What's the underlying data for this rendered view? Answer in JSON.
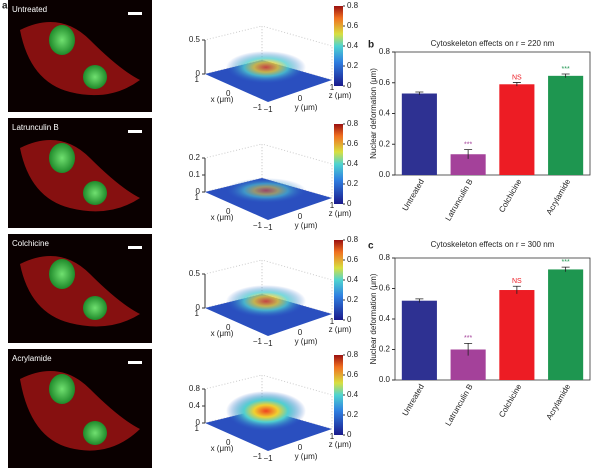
{
  "panel_labels": [
    "a",
    "b",
    "c"
  ],
  "micrographs": [
    {
      "label": "Untreated"
    },
    {
      "label": "Latrunculin B"
    },
    {
      "label": "Colchicine"
    },
    {
      "label": "Acrylamide"
    }
  ],
  "surface_plots": [
    {
      "zlim": [
        0,
        0.5
      ],
      "zticks": [
        0,
        0.5
      ],
      "xticks": [
        {
          "value": -1,
          "label": "−1"
        },
        0,
        1
      ],
      "yticks": [
        {
          "value": -1,
          "label": "−1"
        },
        0,
        1
      ],
      "xlabel": "x (μm)",
      "ylabel": "y (μm)",
      "colorbar_label": "z (μm)",
      "colorbar_lim": [
        0,
        0.8
      ],
      "colorbar_ticks": [
        0,
        0.2,
        0.4,
        0.6,
        0.8
      ]
    },
    {
      "zlim": [
        0,
        0.2
      ],
      "zticks": [
        0,
        0.1,
        0.2
      ],
      "xticks": [
        {
          "value": -1,
          "label": "−1"
        },
        0,
        1
      ],
      "yticks": [
        {
          "value": -1,
          "label": "−1"
        },
        0,
        1
      ],
      "xlabel": "x (μm)",
      "ylabel": "y (μm)",
      "colorbar_label": "z (μm)",
      "colorbar_lim": [
        0,
        0.8
      ],
      "colorbar_ticks": [
        0,
        0.2,
        0.4,
        0.6,
        0.8
      ]
    },
    {
      "zlim": [
        0,
        0.5
      ],
      "zticks": [
        0,
        0.5
      ],
      "xticks": [
        {
          "value": -1,
          "label": "−1"
        },
        0,
        1
      ],
      "yticks": [
        {
          "value": -1,
          "label": "−1"
        },
        0,
        1
      ],
      "xlabel": "x (μm)",
      "ylabel": "y (μm)",
      "colorbar_label": "z (μm)",
      "colorbar_lim": [
        0,
        0.8
      ],
      "colorbar_ticks": [
        0,
        0.2,
        0.4,
        0.6,
        0.8
      ]
    },
    {
      "zlim": [
        0,
        0.8
      ],
      "zticks": [
        0,
        0.4,
        0.8
      ],
      "xticks": [
        {
          "value": -1,
          "label": "−1"
        },
        0,
        1
      ],
      "yticks": [
        {
          "value": -1,
          "label": "−1"
        },
        0,
        1
      ],
      "xlabel": "x (μm)",
      "ylabel": "y (μm)",
      "colorbar_label": "z (μm)",
      "colorbar_lim": [
        0,
        0.8
      ],
      "colorbar_ticks": [
        0,
        0.2,
        0.4,
        0.6,
        0.8
      ]
    }
  ],
  "chart_data": [
    {
      "type": "bar",
      "title": "Cytoskeleton effects on r = 220 nm",
      "ylabel": "Nuclear deformation (μm)",
      "categories": [
        "Untreated",
        "Latrunculin B",
        "Colchicine",
        "Acrylamide"
      ],
      "values": [
        0.53,
        0.135,
        0.59,
        0.645
      ],
      "errors": [
        0.01,
        0.03,
        0.012,
        0.012
      ],
      "colors": [
        "#2e3192",
        "#a4419a",
        "#ed1c24",
        "#1e9650"
      ],
      "significance": [
        null,
        "***",
        "NS",
        "***"
      ],
      "ylim": [
        0,
        0.8
      ],
      "yticks": [
        {
          "value": 0,
          "label": "0.0"
        },
        0.2,
        0.4,
        0.6,
        0.8
      ]
    },
    {
      "type": "bar",
      "title": "Cytoskeleton effects on r = 300 nm",
      "ylabel": "Nuclear deformation (μm)",
      "categories": [
        "Untreated",
        "Latrunculin B",
        "Colchicine",
        "Acrylamide"
      ],
      "values": [
        0.52,
        0.2,
        0.59,
        0.725
      ],
      "errors": [
        0.012,
        0.04,
        0.025,
        0.015
      ],
      "colors": [
        "#2e3192",
        "#a4419a",
        "#ed1c24",
        "#1e9650"
      ],
      "significance": [
        null,
        "***",
        "NS",
        "***"
      ],
      "ylim": [
        0,
        0.8
      ],
      "yticks": [
        {
          "value": 0,
          "label": "0.0"
        },
        0.2,
        0.4,
        0.6,
        0.8
      ]
    }
  ]
}
